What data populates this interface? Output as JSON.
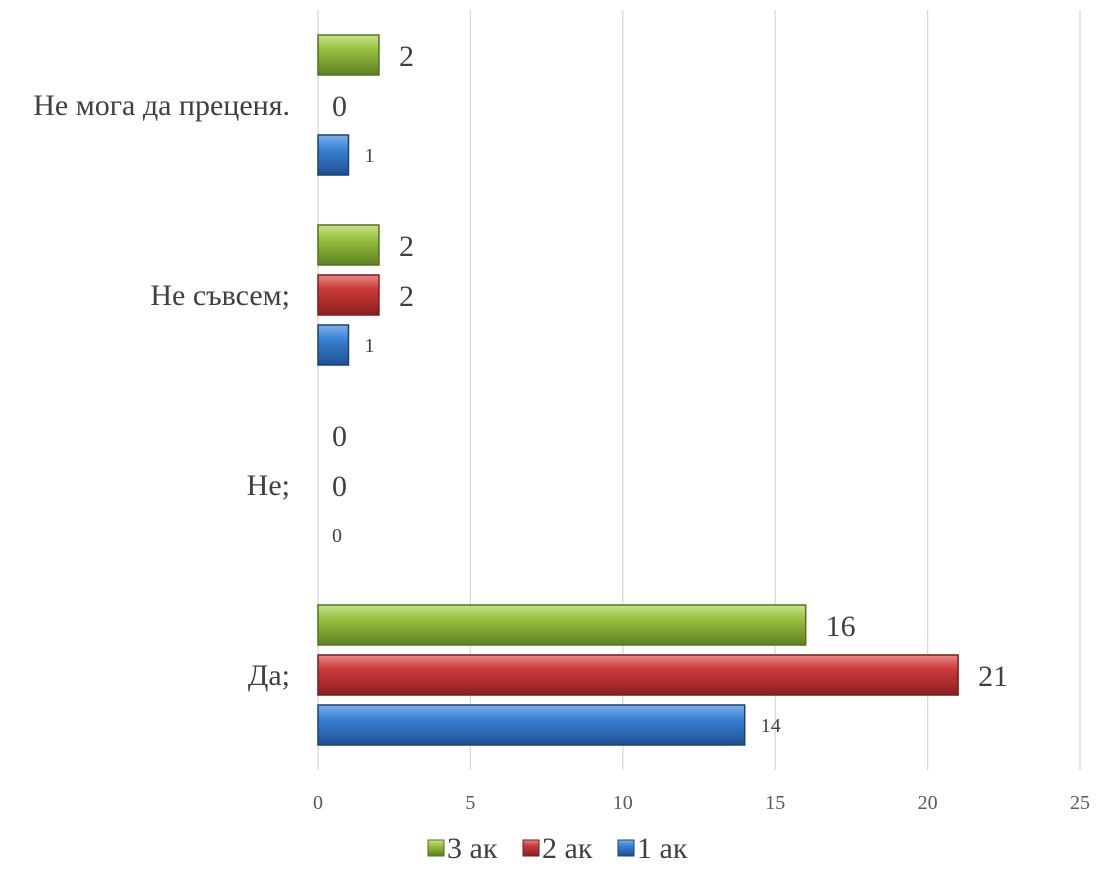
{
  "chart_data": {
    "type": "bar",
    "orientation": "horizontal",
    "categories": [
      "Да;",
      "Не;",
      "Не съвсем;",
      "Не мога да преценя."
    ],
    "series": [
      {
        "name": "1 ак",
        "values": [
          14,
          0,
          1,
          1
        ],
        "color": "#2e75c7"
      },
      {
        "name": "2 ак",
        "values": [
          21,
          0,
          2,
          0
        ],
        "color": "#c73a3a"
      },
      {
        "name": "3 ак",
        "values": [
          16,
          0,
          2,
          2
        ],
        "color": "#8fba3c"
      }
    ],
    "xlim": [
      0,
      25
    ],
    "xticks": [
      0,
      5,
      10,
      15,
      20,
      25
    ],
    "grid": true,
    "legend_position": "bottom"
  }
}
